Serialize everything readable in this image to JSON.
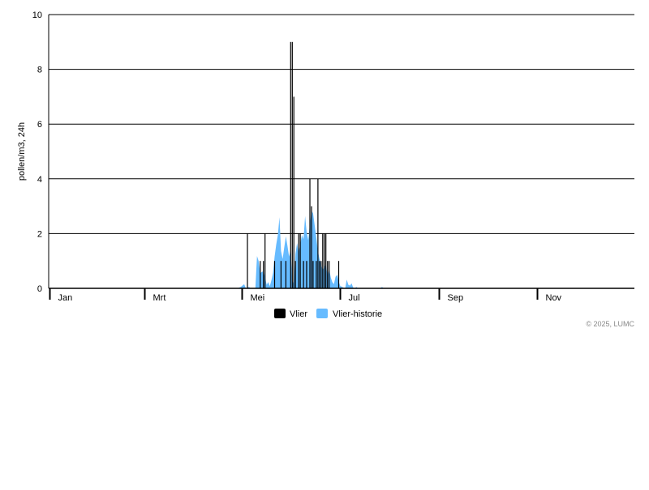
{
  "chart_data": {
    "type": "bar",
    "year": 2025,
    "ylabel": "pollen/m3, 24h",
    "ylim": [
      0,
      10
    ],
    "yticks": [
      0,
      2,
      4,
      6,
      8,
      10
    ],
    "xticks": [
      "Jan",
      "Mrt",
      "Mei",
      "Jul",
      "Sep",
      "Nov"
    ],
    "grid": true,
    "legend_placement": "bottom-center",
    "colors": {
      "Vlier": "#000000",
      "Vlier-historie": "#66bbff"
    },
    "series": [
      {
        "name": "Vlier",
        "type": "bar",
        "points": [
          [
            "2025-05-04",
            2
          ],
          [
            "2025-05-12",
            1
          ],
          [
            "2025-05-14",
            1
          ],
          [
            "2025-05-15",
            2
          ],
          [
            "2025-05-21",
            1
          ],
          [
            "2025-05-25",
            1
          ],
          [
            "2025-05-28",
            1
          ],
          [
            "2025-05-31",
            9
          ],
          [
            "2025-06-01",
            9
          ],
          [
            "2025-06-02",
            7
          ],
          [
            "2025-06-03",
            1
          ],
          [
            "2025-06-05",
            2
          ],
          [
            "2025-06-06",
            2
          ],
          [
            "2025-06-08",
            1
          ],
          [
            "2025-06-10",
            1
          ],
          [
            "2025-06-12",
            4
          ],
          [
            "2025-06-13",
            3
          ],
          [
            "2025-06-14",
            1
          ],
          [
            "2025-06-16",
            1
          ],
          [
            "2025-06-17",
            4
          ],
          [
            "2025-06-18",
            1
          ],
          [
            "2025-06-19",
            1
          ],
          [
            "2025-06-20",
            2
          ],
          [
            "2025-06-21",
            2
          ],
          [
            "2025-06-22",
            2
          ],
          [
            "2025-06-23",
            1
          ],
          [
            "2025-06-24",
            1
          ],
          [
            "2025-06-30",
            1
          ]
        ]
      },
      {
        "name": "Vlier-historie",
        "type": "area",
        "points": [
          [
            "2025-04-28",
            0
          ],
          [
            "2025-04-30",
            0.06
          ],
          [
            "2025-05-02",
            0.15
          ],
          [
            "2025-05-03",
            0
          ],
          [
            "2025-05-05",
            0.05
          ],
          [
            "2025-05-06",
            0
          ],
          [
            "2025-05-09",
            0
          ],
          [
            "2025-05-10",
            1.18
          ],
          [
            "2025-05-11",
            1.0
          ],
          [
            "2025-05-12",
            0.55
          ],
          [
            "2025-05-13",
            0.6
          ],
          [
            "2025-05-14",
            0.62
          ],
          [
            "2025-05-15",
            0.4
          ],
          [
            "2025-05-16",
            0.13
          ],
          [
            "2025-05-17",
            0.23
          ],
          [
            "2025-05-18",
            0.08
          ],
          [
            "2025-05-19",
            0.3
          ],
          [
            "2025-05-20",
            0.57
          ],
          [
            "2025-05-21",
            1.16
          ],
          [
            "2025-05-22",
            1.6
          ],
          [
            "2025-05-23",
            1.95
          ],
          [
            "2025-05-24",
            2.6
          ],
          [
            "2025-05-25",
            1.36
          ],
          [
            "2025-05-26",
            1.07
          ],
          [
            "2025-05-27",
            1.5
          ],
          [
            "2025-05-28",
            1.9
          ],
          [
            "2025-05-29",
            1.56
          ],
          [
            "2025-05-30",
            1.16
          ],
          [
            "2025-05-31",
            1.4
          ],
          [
            "2025-06-01",
            0.28
          ],
          [
            "2025-06-02",
            0.16
          ],
          [
            "2025-06-03",
            1.26
          ],
          [
            "2025-06-04",
            1.65
          ],
          [
            "2025-06-05",
            1.3
          ],
          [
            "2025-06-06",
            1.6
          ],
          [
            "2025-06-07",
            1.95
          ],
          [
            "2025-06-08",
            1.8
          ],
          [
            "2025-06-09",
            2.64
          ],
          [
            "2025-06-10",
            2.05
          ],
          [
            "2025-06-11",
            1.76
          ],
          [
            "2025-06-12",
            2.35
          ],
          [
            "2025-06-13",
            2.84
          ],
          [
            "2025-06-14",
            2.74
          ],
          [
            "2025-06-15",
            2.3
          ],
          [
            "2025-06-16",
            1.85
          ],
          [
            "2025-06-17",
            1.36
          ],
          [
            "2025-06-18",
            1.07
          ],
          [
            "2025-06-19",
            0.87
          ],
          [
            "2025-06-20",
            0.67
          ],
          [
            "2025-06-21",
            0.77
          ],
          [
            "2025-06-22",
            0.87
          ],
          [
            "2025-06-23",
            0.47
          ],
          [
            "2025-06-24",
            0.71
          ],
          [
            "2025-06-25",
            0.4
          ],
          [
            "2025-06-26",
            0.23
          ],
          [
            "2025-06-27",
            0.15
          ],
          [
            "2025-06-28",
            0.42
          ],
          [
            "2025-06-29",
            0.49
          ],
          [
            "2025-06-30",
            0.25
          ],
          [
            "2025-07-01",
            0.08
          ],
          [
            "2025-07-02",
            0.06
          ],
          [
            "2025-07-03",
            0.02
          ],
          [
            "2025-07-04",
            0
          ],
          [
            "2025-07-05",
            0.32
          ],
          [
            "2025-07-06",
            0.13
          ],
          [
            "2025-07-07",
            0.1
          ],
          [
            "2025-07-08",
            0.18
          ],
          [
            "2025-07-09",
            0.03
          ],
          [
            "2025-07-10",
            0
          ],
          [
            "2025-07-11",
            0.05
          ],
          [
            "2025-07-12",
            0
          ],
          [
            "2025-07-26",
            0
          ],
          [
            "2025-07-27",
            0.05
          ],
          [
            "2025-07-28",
            0
          ]
        ]
      }
    ]
  },
  "legend": {
    "items": [
      "Vlier",
      "Vlier-historie"
    ]
  },
  "copyright": "© 2025, LUMC"
}
